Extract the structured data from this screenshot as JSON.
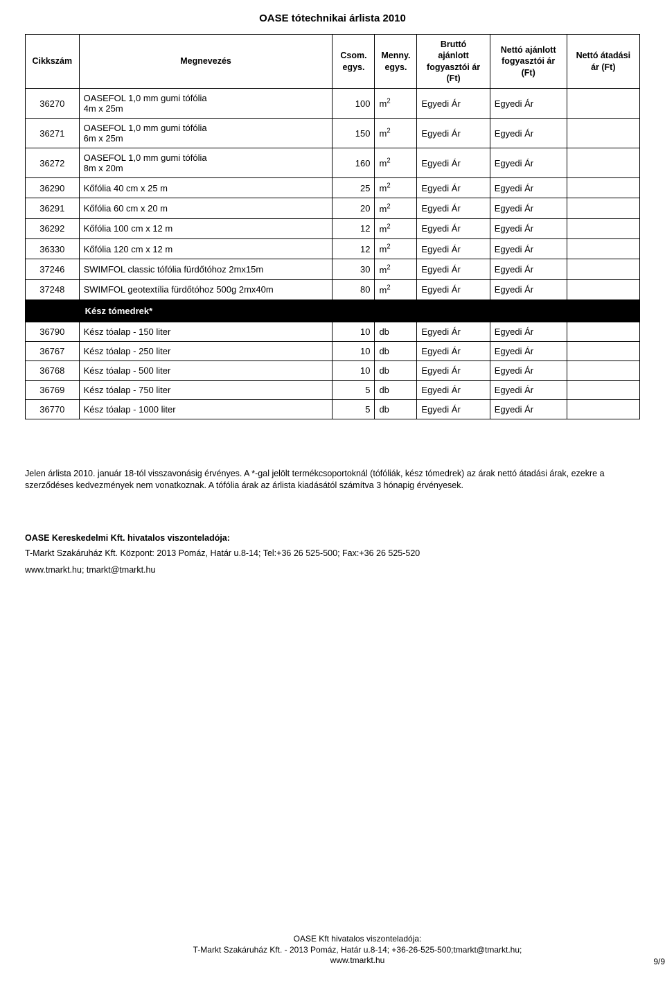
{
  "page": {
    "title": "OASE tótechnikai árlista 2010",
    "page_number": "9/9"
  },
  "columns": {
    "sku": "Cikkszám",
    "name": "Megnevezés",
    "csom": "Csom.\negys.",
    "menny": "Menny.\negys.",
    "brutto": "Bruttó\najánlott\nfogyasztói ár\n(Ft)",
    "netto_aj": "Nettó ajánlott\nfogyasztói ár\n(Ft)",
    "netto_at": "Nettó átadási\nár (Ft)"
  },
  "rows": [
    {
      "sku": "36270",
      "name": "OASEFOL 1,0 mm gumi tófólia\n4m x 25m",
      "csom": "100",
      "menny_html": "m²",
      "brutto": "Egyedi Ár",
      "netto_aj": "Egyedi Ár",
      "netto_at": ""
    },
    {
      "sku": "36271",
      "name": "OASEFOL 1,0 mm gumi tófólia\n6m x 25m",
      "csom": "150",
      "menny_html": "m²",
      "brutto": "Egyedi Ár",
      "netto_aj": "Egyedi Ár",
      "netto_at": ""
    },
    {
      "sku": "36272",
      "name": "OASEFOL 1,0 mm gumi tófólia\n8m x 20m",
      "csom": "160",
      "menny_html": "m²",
      "brutto": "Egyedi Ár",
      "netto_aj": "Egyedi Ár",
      "netto_at": ""
    },
    {
      "sku": "36290",
      "name": "Kőfólia 40 cm x 25 m",
      "csom": "25",
      "menny_html": "m²",
      "brutto": "Egyedi Ár",
      "netto_aj": "Egyedi Ár",
      "netto_at": ""
    },
    {
      "sku": "36291",
      "name": "Kőfólia 60 cm x 20 m",
      "csom": "20",
      "menny_html": "m²",
      "brutto": "Egyedi Ár",
      "netto_aj": "Egyedi Ár",
      "netto_at": ""
    },
    {
      "sku": "36292",
      "name": "Kőfólia 100 cm x 12 m",
      "csom": "12",
      "menny_html": "m²",
      "brutto": "Egyedi Ár",
      "netto_aj": "Egyedi Ár",
      "netto_at": ""
    },
    {
      "sku": "36330",
      "name": "Kőfólia 120 cm x 12 m",
      "csom": "12",
      "menny_html": "m²",
      "brutto": "Egyedi Ár",
      "netto_aj": "Egyedi Ár",
      "netto_at": ""
    },
    {
      "sku": "37246",
      "name": "SWIMFOL classic tófólia fürdőtóhoz 2mx15m",
      "csom": "30",
      "menny_html": "m²",
      "brutto": "Egyedi Ár",
      "netto_aj": "Egyedi Ár",
      "netto_at": ""
    },
    {
      "sku": "37248",
      "name": "SWIMFOL geotextília fürdőtóhoz 500g 2mx40m",
      "csom": "80",
      "menny_html": "m²",
      "brutto": "Egyedi Ár",
      "netto_aj": "Egyedi Ár",
      "netto_at": ""
    }
  ],
  "section_label": "Kész tómedrek*",
  "rows2": [
    {
      "sku": "36790",
      "name": "Kész tóalap - 150 liter",
      "csom": "10",
      "menny": "db",
      "brutto": "Egyedi Ár",
      "netto_aj": "Egyedi Ár",
      "netto_at": ""
    },
    {
      "sku": "36767",
      "name": "Kész tóalap - 250 liter",
      "csom": "10",
      "menny": "db",
      "brutto": "Egyedi Ár",
      "netto_aj": "Egyedi Ár",
      "netto_at": ""
    },
    {
      "sku": "36768",
      "name": "Kész tóalap - 500 liter",
      "csom": "10",
      "menny": "db",
      "brutto": "Egyedi Ár",
      "netto_aj": "Egyedi Ár",
      "netto_at": ""
    },
    {
      "sku": "36769",
      "name": "Kész tóalap - 750 liter",
      "csom": "5",
      "menny": "db",
      "brutto": "Egyedi Ár",
      "netto_aj": "Egyedi Ár",
      "netto_at": ""
    },
    {
      "sku": "36770",
      "name": "Kész tóalap - 1000 liter",
      "csom": "5",
      "menny": "db",
      "brutto": "Egyedi Ár",
      "netto_aj": "Egyedi Ár",
      "netto_at": ""
    }
  ],
  "notes": "Jelen árlista 2010. január 18-tól visszavonásig érvényes. A *-gal jelölt termékcsoportoknál (tófóliák, kész tómedrek) az árak nettó átadási árak, ezekre a szerződéses kedvezmények nem vonatkoznak. A tófólia árak az árlista kiadásától számítva 3 hónapig érvényesek.",
  "reseller": {
    "heading": "OASE Kereskedelmi Kft. hivatalos viszonteladója:",
    "contact": "T-Markt Szakáruház Kft. Központ: 2013 Pomáz, Határ u.8-14; Tel:+36 26 525-500; Fax:+36 26 525-520",
    "web": "www.tmarkt.hu; tmarkt@tmarkt.hu"
  },
  "footer": {
    "line1": "OASE Kft hivatalos viszonteladója:",
    "line2": "T-Markt Szakáruház Kft. - 2013 Pomáz, Határ u.8-14; +36-26-525-500;tmarkt@tmarkt.hu;",
    "line3": "www.tmarkt.hu"
  }
}
